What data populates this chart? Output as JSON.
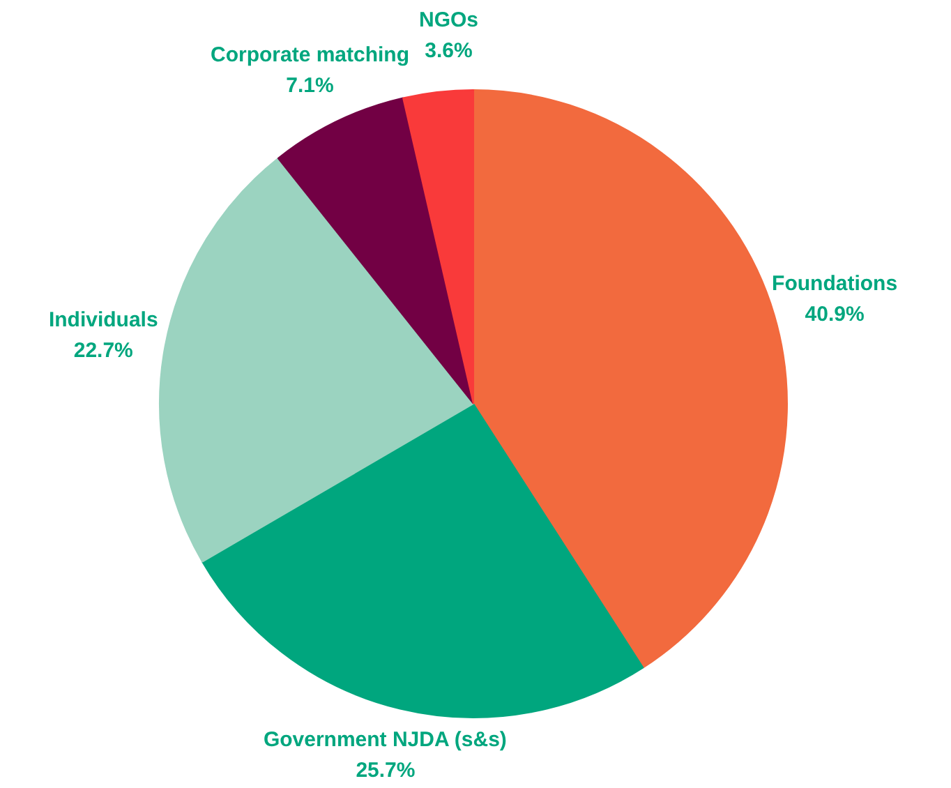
{
  "chart_data": {
    "type": "pie",
    "categories": [
      "Foundations",
      "Government NJDA (s&s)",
      "Individuals",
      "Corporate matching",
      "NGOs"
    ],
    "values": [
      40.9,
      25.7,
      22.7,
      7.1,
      3.6
    ],
    "colors": [
      "#f26a3e",
      "#00a67e",
      "#9bd3c0",
      "#720044",
      "#f93a3a"
    ],
    "value_labels": [
      "40.9%",
      "25.7%",
      "22.7%",
      "7.1%",
      "3.6%"
    ]
  }
}
